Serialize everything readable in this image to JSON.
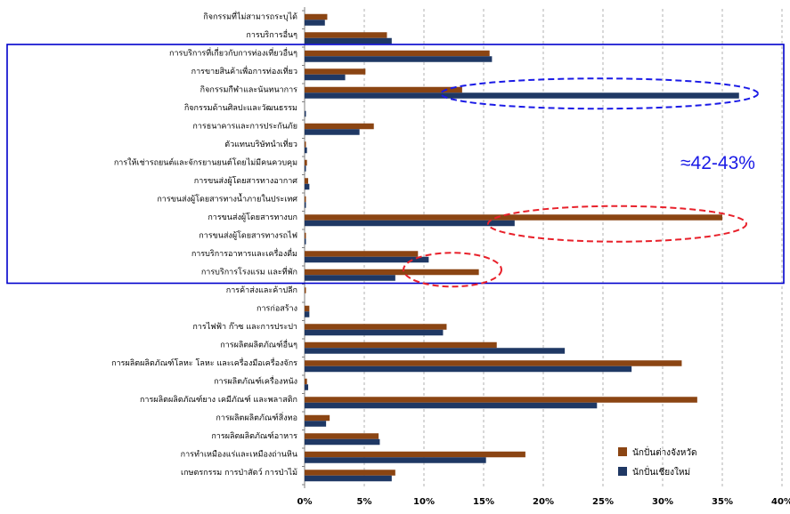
{
  "chart_data": {
    "type": "bar",
    "orientation": "horizontal",
    "categories": [
      "กิจกรรมที่ไม่สามารถระบุได้",
      "การบริการอื่นๆ",
      "การบริการที่เกี่ยวกับการท่องเที่ยวอื่นๆ",
      "การขายสินค้าเพื่อการท่องเที่ยว",
      "กิจกรรมกีฬาและนันทนาการ",
      "กิจกรรมด้านศิลปะและวัฒนธรรม",
      "การธนาคารและการประกันภัย",
      "ตัวแทนบริษัทนำเที่ยว",
      "การให้เช่ารถยนต์และจักรยานยนต์โดยไม่มีคนควบคุม",
      "การขนส่งผู้โดยสารทางอากาศ",
      "การขนส่งผู้โดยสารทางน้ำภายในประเทศ",
      "การขนส่งผู้โดยสารทางบก",
      "การขนส่งผู้โดยสารทางรถไฟ",
      "การบริการอาหารและเครื่องดื่ม",
      "การบริการโรงแรม และที่พัก",
      "การค้าส่งและค้าปลีก",
      "การก่อสร้าง",
      "การไฟฟ้า ก๊าซ และการประปา",
      "การผลิตผลิตภัณฑ์อื่นๆ",
      "การผลิตผลิตภัณฑ์โลหะ โลหะ และเครื่องมือเครื่องจักร",
      "การผลิตภัณฑ์เครื่องหนัง",
      "การผลิตผลิตภัณฑ์ยาง เคมีภัณฑ์ และพลาสติก",
      "การผลิตผลิตภัณฑ์สิ่งทอ",
      "การผลิตผลิตภัณฑ์อาหาร",
      "การทำเหมืองแร่และเหมืองถ่านหิน",
      "เกษตรกรรม การป่าสัตว์ การป่าไม้"
    ],
    "series": [
      {
        "name": "นักปั่นต่างจังหวัด",
        "color": "#8B4513",
        "values": [
          1.9,
          6.9,
          15.5,
          5.1,
          13.2,
          0.0,
          5.8,
          0.1,
          0.2,
          0.3,
          0.1,
          35.0,
          0.1,
          9.5,
          14.6,
          0.1,
          0.4,
          11.9,
          16.1,
          31.6,
          0.2,
          32.9,
          2.1,
          6.2,
          18.5,
          7.6
        ]
      },
      {
        "name": "นักปั่นเชียงใหม่",
        "color": "#1F3864",
        "values": [
          1.7,
          7.3,
          15.7,
          3.4,
          36.4,
          0.1,
          4.6,
          0.2,
          0.1,
          0.4,
          0.1,
          17.6,
          0.1,
          10.4,
          7.6,
          0.0,
          0.4,
          11.6,
          21.8,
          27.4,
          0.3,
          24.5,
          1.8,
          6.3,
          15.2,
          7.3
        ]
      }
    ],
    "xlim": [
      0,
      40
    ],
    "xticks": [
      "0%",
      "5%",
      "10%",
      "15%",
      "20%",
      "25%",
      "30%",
      "35%",
      "40%"
    ],
    "grid": "vertical-dashed",
    "legend_position": "bottom-right",
    "annotation": "≈42-43%"
  },
  "colors": {
    "highlight_box": "#0000CC",
    "blue_ellipse": "#1A1AE6",
    "red_ellipse": "#E8202A",
    "annotation_text": "#1A1AE6",
    "grid": "#9E9E9E"
  }
}
